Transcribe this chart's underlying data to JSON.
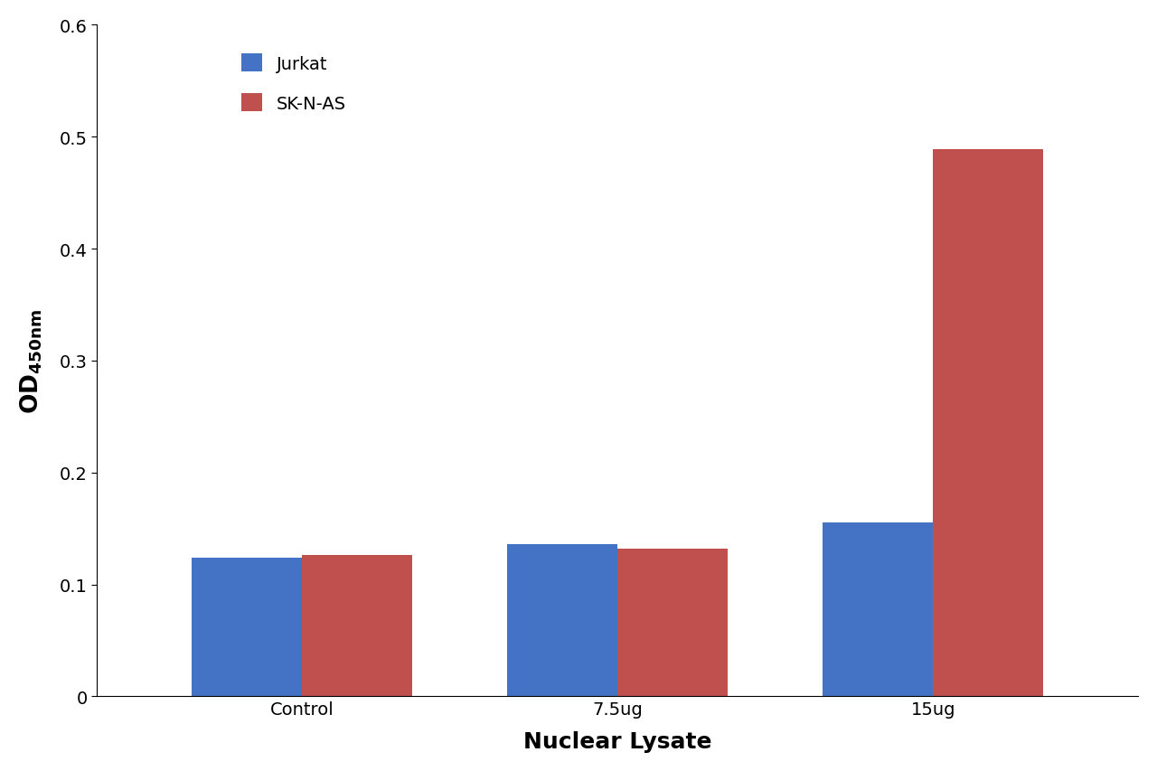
{
  "categories": [
    "Control",
    "7.5ug",
    "15ug"
  ],
  "jurkat_values": [
    0.124,
    0.136,
    0.155
  ],
  "sknas_values": [
    0.126,
    0.132,
    0.489
  ],
  "jurkat_color": "#4472C4",
  "sknas_color": "#C0504D",
  "xlabel": "Nuclear Lysate",
  "ylim": [
    0,
    0.6
  ],
  "yticks": [
    0,
    0.1,
    0.2,
    0.3,
    0.4,
    0.5,
    0.6
  ],
  "legend_labels": [
    "Jurkat",
    "SK-N-AS"
  ],
  "bar_width": 0.35,
  "background_color": "#ffffff",
  "axis_label_fontsize": 17,
  "tick_fontsize": 14,
  "legend_fontsize": 14,
  "xlabel_fontsize": 18
}
